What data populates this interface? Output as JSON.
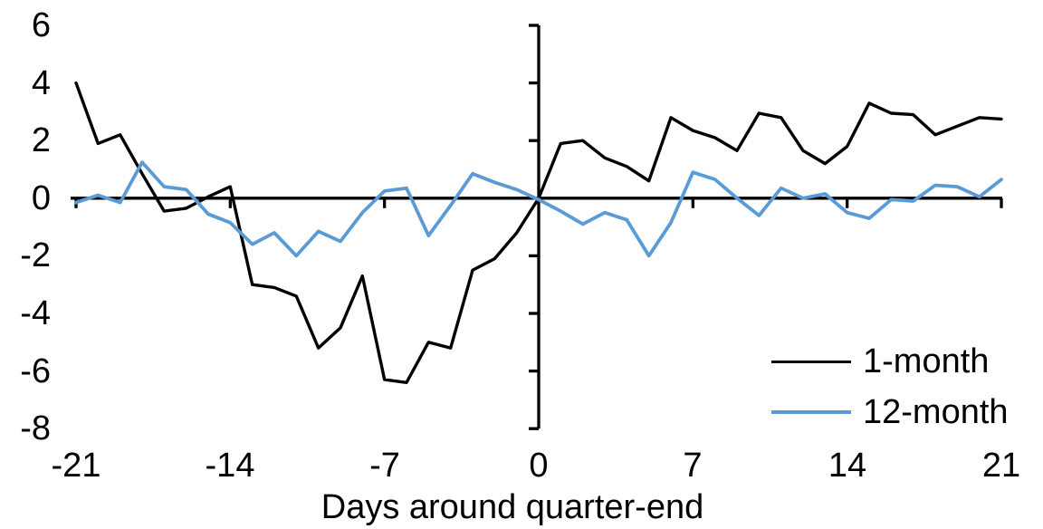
{
  "chart_data": {
    "type": "line",
    "title": "",
    "xlabel": "Days around quarter-end",
    "ylabel": "",
    "xlim": [
      -21,
      21
    ],
    "ylim": [
      -8,
      6
    ],
    "x_ticks": [
      -21,
      -14,
      -7,
      0,
      7,
      14,
      21
    ],
    "y_ticks": [
      6,
      4,
      2,
      0,
      -2,
      -4,
      -6,
      -8
    ],
    "grid": false,
    "legend_position": "inside-bottom-right",
    "axis_color": "#000000",
    "x": [
      -21,
      -20,
      -19,
      -18,
      -17,
      -16,
      -15,
      -14,
      -13,
      -12,
      -11,
      -10,
      -9,
      -8,
      -7,
      -6,
      -5,
      -4,
      -3,
      -2,
      -1,
      0,
      1,
      2,
      3,
      4,
      5,
      6,
      7,
      8,
      9,
      10,
      11,
      12,
      13,
      14,
      15,
      16,
      17,
      18,
      19,
      20,
      21
    ],
    "series": [
      {
        "name": "1-month",
        "color": "#000000",
        "line_width": 3.4,
        "values": [
          4.0,
          1.9,
          2.2,
          0.85,
          -0.45,
          -0.35,
          0.05,
          0.4,
          -3.0,
          -3.1,
          -3.4,
          -5.2,
          -4.5,
          -2.7,
          -6.3,
          -6.4,
          -5.0,
          -5.2,
          -2.5,
          -2.1,
          -1.2,
          0.0,
          1.9,
          2.0,
          1.4,
          1.1,
          0.6,
          2.8,
          2.35,
          2.1,
          1.65,
          2.95,
          2.8,
          1.65,
          1.2,
          1.8,
          3.3,
          2.95,
          2.9,
          2.2,
          2.5,
          2.8,
          2.75
        ]
      },
      {
        "name": "12-month",
        "color": "#5B9BD5",
        "line_width": 3.8,
        "values": [
          -0.15,
          0.1,
          -0.15,
          1.25,
          0.4,
          0.3,
          -0.55,
          -0.85,
          -1.6,
          -1.2,
          -2.0,
          -1.15,
          -1.5,
          -0.5,
          0.25,
          0.35,
          -1.3,
          -0.25,
          0.85,
          0.55,
          0.3,
          -0.05,
          -0.45,
          -0.9,
          -0.5,
          -0.75,
          -2.0,
          -0.85,
          0.9,
          0.65,
          0.0,
          -0.6,
          0.35,
          0.0,
          0.15,
          -0.5,
          -0.7,
          -0.05,
          -0.1,
          0.45,
          0.4,
          0.05,
          0.65
        ]
      }
    ]
  }
}
